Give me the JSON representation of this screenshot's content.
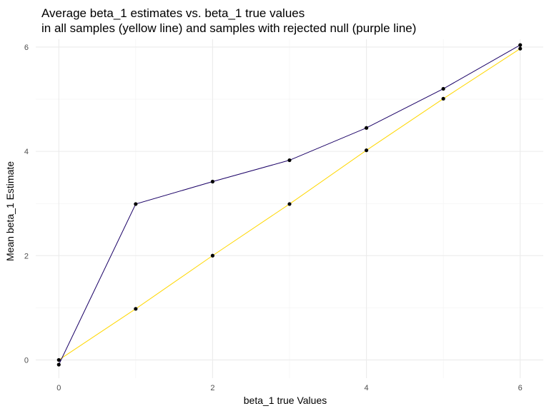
{
  "chart_data": {
    "type": "line",
    "title_lines": [
      "Average beta_1 estimates vs. beta_1 true values",
      "in all samples (yellow line) and samples with rejected null (purple line)"
    ],
    "xlabel": "beta_1 true Values",
    "ylabel": "Mean beta_1 Estimate",
    "xlim": [
      -0.3,
      6.3
    ],
    "ylim": [
      -0.35,
      6.15
    ],
    "x_ticks": [
      0,
      2,
      4,
      6
    ],
    "y_ticks": [
      0,
      2,
      4,
      6
    ],
    "x_tick_labels": [
      "0",
      "2",
      "4",
      "6"
    ],
    "y_tick_labels": [
      "0",
      "2",
      "4",
      "6"
    ],
    "grid": true,
    "legend": "none",
    "x": [
      0,
      1,
      2,
      3,
      4,
      5,
      6
    ],
    "series": [
      {
        "color": "#ffd700",
        "values": [
          0.0,
          0.98,
          2.0,
          2.99,
          4.02,
          5.01,
          5.97
        ]
      },
      {
        "color": "#1a0066",
        "values": [
          -0.09,
          2.99,
          3.42,
          3.83,
          4.45,
          5.2,
          6.04
        ]
      }
    ]
  }
}
